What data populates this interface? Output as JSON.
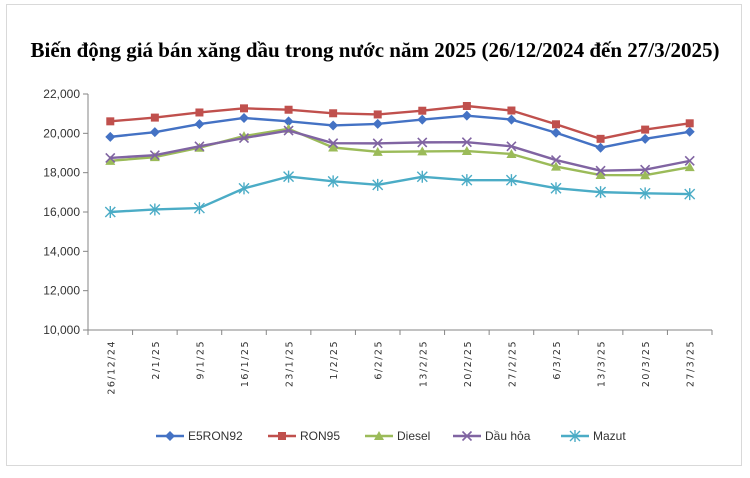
{
  "chart_data": {
    "type": "line",
    "title": "Biến động giá bán xăng dầu trong nước năm 2025 (26/12/2024 đến 27/3/2025)",
    "xlabel": "",
    "ylabel": "",
    "categories": [
      "26/12/24",
      "2/1/25",
      "9/1/25",
      "16/1/25",
      "23/1/25",
      "1/2/25",
      "6/2/25",
      "13/2/25",
      "20/2/25",
      "27/2/25",
      "6/3/25",
      "13/3/25",
      "20/3/25",
      "27/3/25"
    ],
    "ylim": [
      10000,
      22000
    ],
    "yticks": [
      {
        "value": 10000,
        "label": "10,000"
      },
      {
        "value": 12000,
        "label": "12,000"
      },
      {
        "value": 14000,
        "label": "14,000"
      },
      {
        "value": 16000,
        "label": "16,000"
      },
      {
        "value": 18000,
        "label": "18,000"
      },
      {
        "value": 20000,
        "label": "20,000"
      },
      {
        "value": 22000,
        "label": "22,000"
      }
    ],
    "grid": false,
    "legend_position": "bottom",
    "series": [
      {
        "name": "E5RON92",
        "color": "#4472C4",
        "marker": "diamond",
        "values": [
          19820,
          20060,
          20470,
          20780,
          20610,
          20400,
          20480,
          20700,
          20900,
          20700,
          20030,
          19270,
          19720,
          20080
        ]
      },
      {
        "name": "RON95",
        "color": "#C0504D",
        "marker": "square",
        "values": [
          20610,
          20800,
          21060,
          21270,
          21200,
          21020,
          20960,
          21150,
          21390,
          21160,
          20460,
          19720,
          20190,
          20510
        ]
      },
      {
        "name": "Diesel",
        "color": "#9BBB59",
        "marker": "triangle",
        "values": [
          18600,
          18790,
          19270,
          19860,
          20230,
          19280,
          19060,
          19080,
          19100,
          18950,
          18310,
          17880,
          17870,
          18280
        ]
      },
      {
        "name": "Dầu hỏa",
        "color": "#8064A2",
        "marker": "x",
        "values": [
          18750,
          18890,
          19340,
          19760,
          20140,
          19500,
          19490,
          19540,
          19550,
          19340,
          18640,
          18100,
          18150,
          18600
        ]
      },
      {
        "name": "Mazut",
        "color": "#4BACC6",
        "marker": "star",
        "values": [
          16000,
          16130,
          16200,
          17200,
          17800,
          17560,
          17380,
          17790,
          17620,
          17620,
          17210,
          17010,
          16950,
          16910
        ]
      }
    ]
  }
}
